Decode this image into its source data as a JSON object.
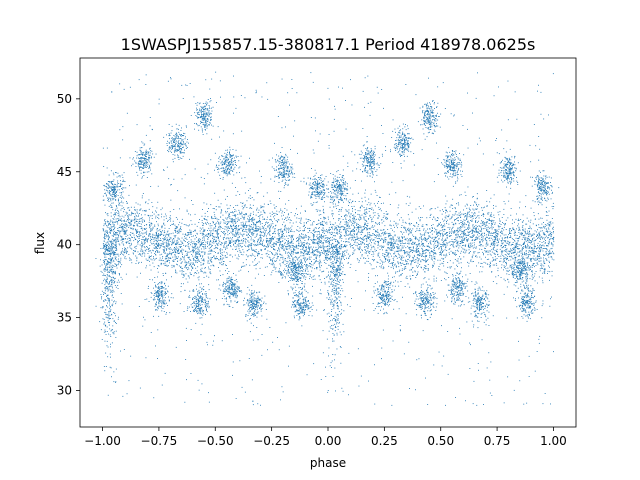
{
  "chart_data": {
    "type": "scatter",
    "title": "1SWASPJ155857.15-380817.1 Period 418978.0625s",
    "xlabel": "phase",
    "ylabel": "flux",
    "xlim": [
      -1.1,
      1.1
    ],
    "ylim": [
      27.5,
      52.8
    ],
    "x_ticks": [
      -1.0,
      -0.75,
      -0.5,
      -0.25,
      0.0,
      0.25,
      0.5,
      0.75,
      1.0
    ],
    "x_tick_labels": [
      "−1.00",
      "−0.75",
      "−0.50",
      "−0.25",
      "0.00",
      "0.25",
      "0.50",
      "0.75",
      "1.00"
    ],
    "y_ticks": [
      30,
      35,
      40,
      45,
      50
    ],
    "y_tick_labels": [
      "30",
      "35",
      "40",
      "45",
      "50"
    ],
    "marker_color": "#1f77b4",
    "grid": false,
    "legend": "none",
    "series": [
      {
        "note_band": "main band",
        "phase_range": [
          -1.0,
          1.0
        ],
        "flux_center": 40.3,
        "flux_spread": 1.6
      }
    ],
    "clumps": [
      {
        "x": -0.95,
        "y": 43.8
      },
      {
        "x": -0.82,
        "y": 45.8
      },
      {
        "x": -0.75,
        "y": 36.5
      },
      {
        "x": -0.67,
        "y": 47.0
      },
      {
        "x": -0.57,
        "y": 36.1
      },
      {
        "x": -0.55,
        "y": 48.8
      },
      {
        "x": -0.45,
        "y": 45.5
      },
      {
        "x": -0.43,
        "y": 37.0
      },
      {
        "x": -0.33,
        "y": 36.0
      },
      {
        "x": -0.2,
        "y": 45.2
      },
      {
        "x": -0.15,
        "y": 38.2
      },
      {
        "x": -0.12,
        "y": 36.0
      },
      {
        "x": -0.05,
        "y": 43.9
      },
      {
        "x": 0.05,
        "y": 43.8
      },
      {
        "x": 0.18,
        "y": 45.8
      },
      {
        "x": 0.25,
        "y": 36.5
      },
      {
        "x": 0.33,
        "y": 47.0
      },
      {
        "x": 0.43,
        "y": 36.1
      },
      {
        "x": 0.45,
        "y": 48.8
      },
      {
        "x": 0.55,
        "y": 45.5
      },
      {
        "x": 0.57,
        "y": 37.0
      },
      {
        "x": 0.67,
        "y": 36.0
      },
      {
        "x": 0.8,
        "y": 45.2
      },
      {
        "x": 0.85,
        "y": 38.2
      },
      {
        "x": 0.88,
        "y": 36.0
      },
      {
        "x": 0.95,
        "y": 43.9
      }
    ]
  }
}
